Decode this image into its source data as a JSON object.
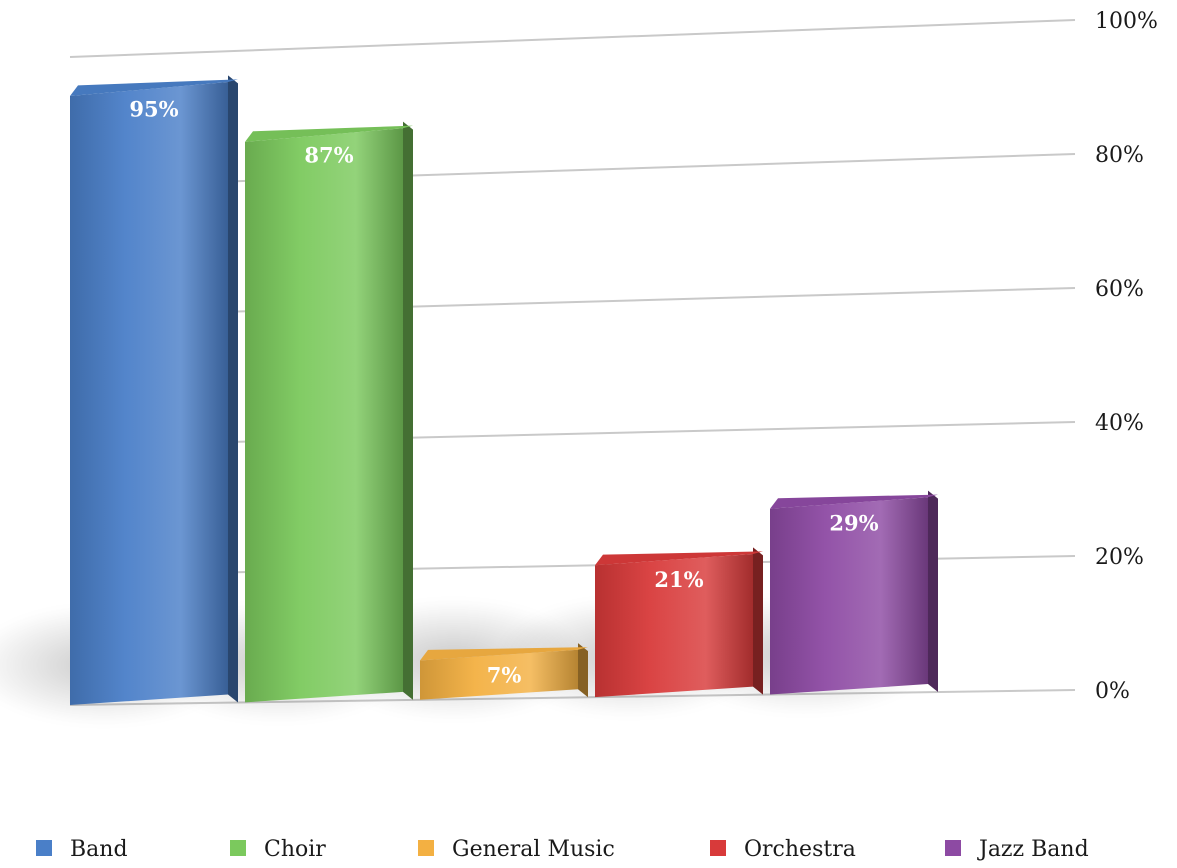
{
  "chart_data": {
    "type": "bar",
    "categories": [
      "Band",
      "Choir",
      "General Music",
      "Orchestra",
      "Jazz Band"
    ],
    "series": [
      {
        "values": [
          95,
          87,
          7,
          21,
          29
        ]
      }
    ],
    "data_labels": [
      "95%",
      "87%",
      "7%",
      "21%",
      "29%"
    ],
    "colors": [
      "#4a7fc8",
      "#7bc95d",
      "#f3b042",
      "#d83a3a",
      "#8d4aa3"
    ],
    "ylim": [
      0,
      100
    ],
    "yticks": [
      0,
      20,
      40,
      60,
      80,
      100
    ],
    "ytick_labels": [
      "0%",
      "20%",
      "40%",
      "60%",
      "80%",
      "100%"
    ],
    "grid": true,
    "legend": {
      "position": "bottom",
      "entries": [
        "Band",
        "Choir",
        "General Music",
        "Orchestra",
        "Jazz Band"
      ]
    },
    "title": "",
    "xlabel": "",
    "ylabel": ""
  }
}
